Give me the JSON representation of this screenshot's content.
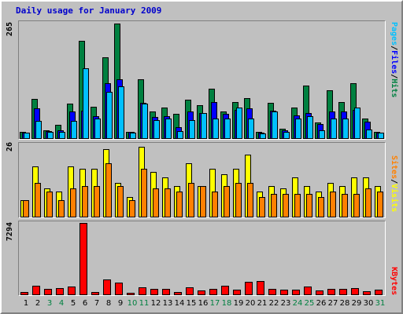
{
  "title": "Daily usage for January 2009",
  "colors": {
    "hits": "#008040",
    "files": "#0000ff",
    "pages": "#00c0ff",
    "visits": "#ffff00",
    "sites": "#ff8000",
    "kbytes": "#ff0000",
    "weekend_label": "#008040",
    "weekday_label": "#000000",
    "panel_bg": "#c0c0c0"
  },
  "chart_data": [
    {
      "type": "bar",
      "panel": "top",
      "scale_max_label": "265",
      "ylim": [
        0,
        265
      ],
      "legend": [
        "Pages",
        "Files",
        "Hits"
      ],
      "categories": [
        "1",
        "2",
        "3",
        "4",
        "5",
        "6",
        "7",
        "8",
        "9",
        "10",
        "11",
        "12",
        "13",
        "14",
        "15",
        "16",
        "17",
        "18",
        "19",
        "20",
        "21",
        "22",
        "23",
        "24",
        "25",
        "26",
        "27",
        "28",
        "29",
        "30",
        "31"
      ],
      "series": [
        {
          "name": "Hits",
          "values": [
            15,
            90,
            18,
            30,
            78,
            222,
            72,
            185,
            262,
            15,
            135,
            60,
            70,
            55,
            88,
            75,
            112,
            60,
            82,
            92,
            14,
            80,
            22,
            70,
            120,
            35,
            110,
            82,
            125,
            45,
            15
          ]
        },
        {
          "name": "Files",
          "values": [
            13,
            68,
            16,
            18,
            60,
            62,
            50,
            125,
            135,
            14,
            80,
            48,
            50,
            25,
            60,
            58,
            82,
            56,
            65,
            68,
            12,
            63,
            18,
            52,
            58,
            32,
            60,
            60,
            65,
            38,
            12
          ]
        },
        {
          "name": "Pages",
          "values": [
            12,
            40,
            14,
            15,
            40,
            160,
            45,
            105,
            118,
            12,
            78,
            42,
            45,
            16,
            42,
            58,
            45,
            45,
            70,
            45,
            10,
            60,
            14,
            45,
            50,
            18,
            45,
            45,
            70,
            20,
            12
          ]
        }
      ]
    },
    {
      "type": "bar",
      "panel": "middle",
      "scale_max_label": "26",
      "ylim": [
        0,
        26
      ],
      "legend": [
        "Sites",
        "Visits"
      ],
      "categories": [
        "1",
        "2",
        "3",
        "4",
        "5",
        "6",
        "7",
        "8",
        "9",
        "10",
        "11",
        "12",
        "13",
        "14",
        "15",
        "16",
        "17",
        "18",
        "19",
        "20",
        "21",
        "22",
        "23",
        "24",
        "25",
        "26",
        "27",
        "28",
        "29",
        "30",
        "31"
      ],
      "series": [
        {
          "name": "Visits",
          "values": [
            6,
            18,
            10,
            9,
            18,
            17,
            17,
            24,
            12,
            7,
            25,
            16,
            14,
            11,
            19,
            11,
            17,
            15,
            17,
            22,
            9,
            11,
            10,
            14,
            11,
            9,
            12,
            11,
            14,
            14,
            11
          ]
        },
        {
          "name": "Sites",
          "values": [
            6,
            12,
            9,
            6,
            10,
            11,
            11,
            19,
            11,
            6,
            17,
            10,
            10,
            9,
            12,
            11,
            9,
            11,
            12,
            12,
            7,
            8,
            8,
            8,
            8,
            7,
            9,
            8,
            8,
            10,
            9
          ]
        }
      ]
    },
    {
      "type": "bar",
      "panel": "bottom",
      "scale_max_label": "7294",
      "ylim": [
        0,
        7294
      ],
      "legend": [
        "KBytes"
      ],
      "categories": [
        "1",
        "2",
        "3",
        "4",
        "5",
        "6",
        "7",
        "8",
        "9",
        "10",
        "11",
        "12",
        "13",
        "14",
        "15",
        "16",
        "17",
        "18",
        "19",
        "20",
        "21",
        "22",
        "23",
        "24",
        "25",
        "26",
        "27",
        "28",
        "29",
        "30",
        "31"
      ],
      "series": [
        {
          "name": "KBytes",
          "values": [
            250,
            900,
            550,
            650,
            800,
            7294,
            250,
            1500,
            1200,
            200,
            700,
            600,
            550,
            250,
            700,
            400,
            600,
            900,
            500,
            1300,
            1400,
            550,
            500,
            500,
            800,
            400,
            550,
            550,
            650,
            350,
            450
          ]
        }
      ]
    }
  ],
  "weekend_days": [
    3,
    4,
    10,
    11,
    17,
    18,
    24,
    25,
    31
  ]
}
